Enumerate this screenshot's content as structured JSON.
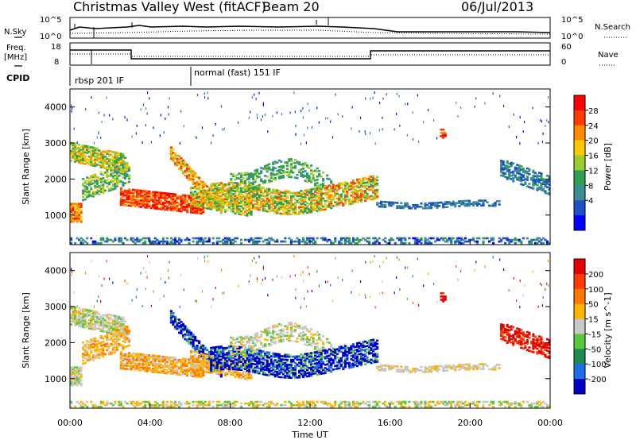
{
  "header": {
    "station": "Christmas Valley West (fitACF)",
    "beam": "Beam 20",
    "date": "06/Jul/2013"
  },
  "panels": {
    "noise": {
      "left_label": "N.Sky",
      "right_label": "N.Search",
      "tick_top": "10^5",
      "tick_bottom": "10^0"
    },
    "freq": {
      "left_label_1": "Freq.",
      "left_label_2": "[MHz]",
      "right_label": "Nave",
      "left_ticks": [
        "18",
        "8"
      ],
      "right_ticks": [
        "60",
        "0"
      ]
    },
    "cpid": {
      "label": "CPID",
      "segments": [
        {
          "text": "rbsp 201 IF",
          "start_hour": 0
        },
        {
          "text": "normal (fast) 151 IF",
          "start_hour": 6
        }
      ]
    }
  },
  "chart_data": [
    {
      "type": "heatmap",
      "name": "power",
      "xlabel": "",
      "ylabel": "Slant Range [km]",
      "ylim": [
        180,
        4500
      ],
      "xlim": [
        0,
        24
      ],
      "yticks": [
        1000,
        2000,
        3000,
        4000
      ],
      "colorbar": {
        "label": "Power [dB]",
        "ticks": [
          "28",
          "24",
          "20",
          "16",
          "12",
          "8",
          "4"
        ],
        "range": [
          0,
          30
        ],
        "colors": [
          "#0000ff",
          "#1e50c8",
          "#3c8c96",
          "#2ea050",
          "#9acd32",
          "#ffc800",
          "#ff8c00",
          "#ff3c00",
          "#ff0000"
        ]
      }
    },
    {
      "type": "heatmap",
      "name": "velocity",
      "xlabel": "Time UT",
      "ylabel": "Slant Range [km]",
      "ylim": [
        180,
        4500
      ],
      "xlim": [
        0,
        24
      ],
      "yticks": [
        1000,
        2000,
        3000,
        4000
      ],
      "xticks": [
        "00:00",
        "04:00",
        "08:00",
        "12:00",
        "16:00",
        "20:00",
        "00:00"
      ],
      "colorbar": {
        "label": "Velocity [m s^-1]",
        "ticks": [
          "200",
          "100",
          "50",
          "15",
          "-15",
          "-50",
          "-100",
          "-200"
        ],
        "range": [
          -250,
          250
        ],
        "colors": [
          "#0000c8",
          "#1e6ee6",
          "#1e8c50",
          "#5ac83c",
          "#c8c8c8",
          "#ffb400",
          "#ff7800",
          "#ff3c00",
          "#e60000"
        ]
      }
    }
  ]
}
